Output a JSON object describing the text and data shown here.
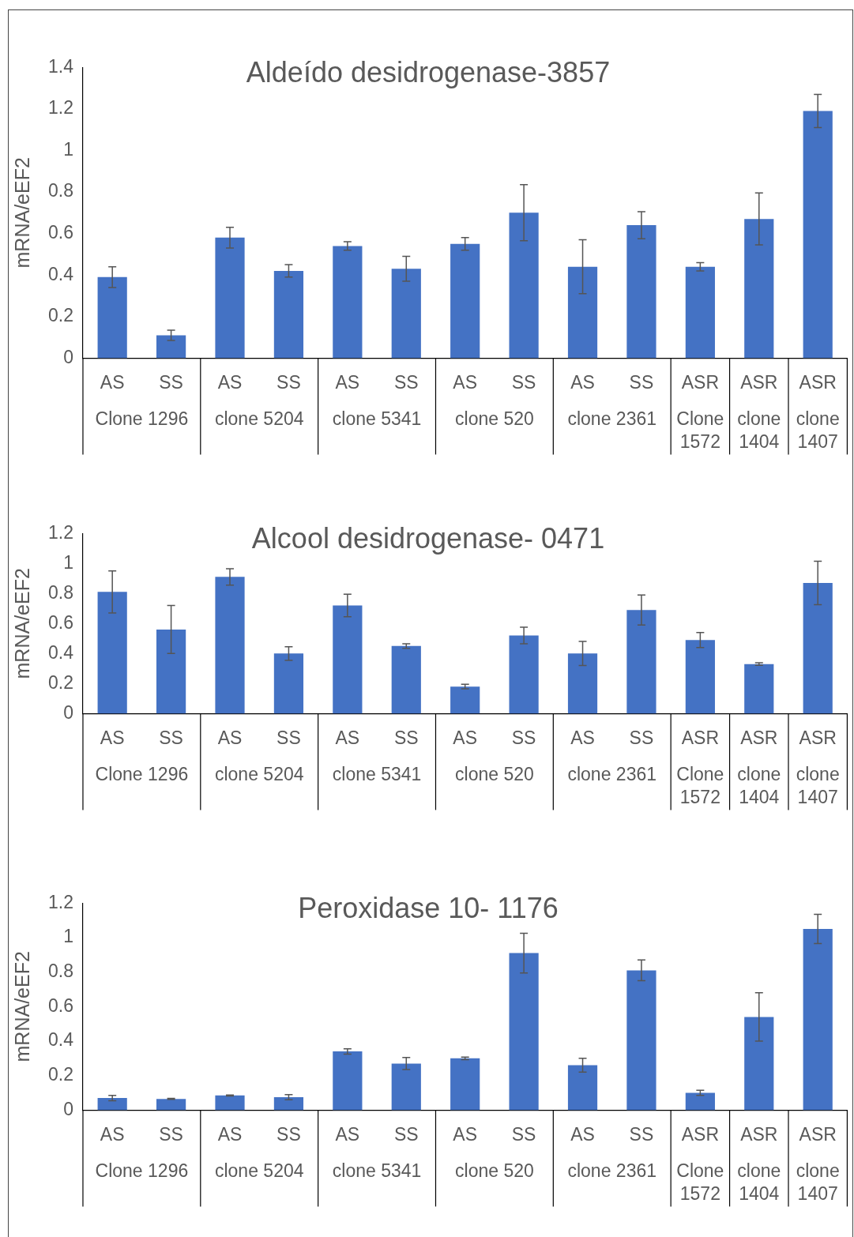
{
  "chart_data": [
    {
      "type": "bar",
      "title": "Aldeído desidrogenase-3857",
      "ylabel": "mRNA/eEF2",
      "color": "#4472c4",
      "categories": [
        "AS",
        "SS",
        "AS",
        "SS",
        "AS",
        "SS",
        "AS",
        "SS",
        "AS",
        "SS",
        "ASR",
        "ASR",
        "ASR"
      ],
      "values": [
        0.39,
        0.11,
        0.58,
        0.42,
        0.54,
        0.43,
        0.55,
        0.7,
        0.44,
        0.64,
        0.44,
        0.67,
        1.19
      ],
      "errors": [
        0.05,
        0.025,
        0.05,
        0.03,
        0.02,
        0.06,
        0.03,
        0.135,
        0.13,
        0.065,
        0.02,
        0.125,
        0.08
      ],
      "ylim": [
        0,
        1.4
      ],
      "yticks": [
        0,
        0.2,
        0.4,
        0.6,
        0.8,
        1,
        1.2,
        1.4
      ],
      "grid": false,
      "annotations": [
        "Clone 1296",
        "clone 5204",
        "clone 5341",
        "clone 520",
        "clone 2361",
        "Clone 1572",
        "clone 1404",
        "clone 1407"
      ]
    },
    {
      "type": "bar",
      "title": "Alcool desidrogenase- 0471",
      "ylabel": "mRNA/eEF2",
      "color": "#4472c4",
      "categories": [
        "AS",
        "SS",
        "AS",
        "SS",
        "AS",
        "SS",
        "AS",
        "SS",
        "AS",
        "SS",
        "ASR",
        "ASR",
        "ASR"
      ],
      "values": [
        0.81,
        0.56,
        0.91,
        0.4,
        0.72,
        0.45,
        0.18,
        0.52,
        0.4,
        0.69,
        0.49,
        0.33,
        0.87
      ],
      "errors": [
        0.14,
        0.16,
        0.055,
        0.045,
        0.075,
        0.015,
        0.015,
        0.055,
        0.08,
        0.1,
        0.05,
        0.008,
        0.145
      ],
      "ylim": [
        0,
        1.2
      ],
      "yticks": [
        0,
        0.2,
        0.4,
        0.6,
        0.8,
        1,
        1.2
      ],
      "grid": false,
      "annotations": [
        "Clone 1296",
        "clone 5204",
        "clone 5341",
        "clone 520",
        "clone 2361",
        "Clone 1572",
        "clone 1404",
        "clone 1407"
      ]
    },
    {
      "type": "bar",
      "title": "Peroxidase 10- 1176",
      "ylabel": "mRNA/eEF2",
      "color": "#4472c4",
      "categories": [
        "AS",
        "SS",
        "AS",
        "SS",
        "AS",
        "SS",
        "AS",
        "SS",
        "AS",
        "SS",
        "ASR",
        "ASR",
        "ASR"
      ],
      "values": [
        0.07,
        0.065,
        0.085,
        0.075,
        0.34,
        0.27,
        0.3,
        0.91,
        0.26,
        0.81,
        0.1,
        0.54,
        1.05
      ],
      "errors": [
        0.015,
        0.003,
        0.003,
        0.015,
        0.015,
        0.035,
        0.007,
        0.115,
        0.04,
        0.06,
        0.015,
        0.14,
        0.085
      ],
      "ylim": [
        0,
        1.2
      ],
      "yticks": [
        0,
        0.2,
        0.4,
        0.6,
        0.8,
        1,
        1.2
      ],
      "grid": false,
      "annotations": [
        "Clone 1296",
        "clone 5204",
        "clone 5341",
        "clone 520",
        "clone 2361",
        "Clone 1572",
        "clone 1404",
        "clone 1407"
      ]
    }
  ]
}
